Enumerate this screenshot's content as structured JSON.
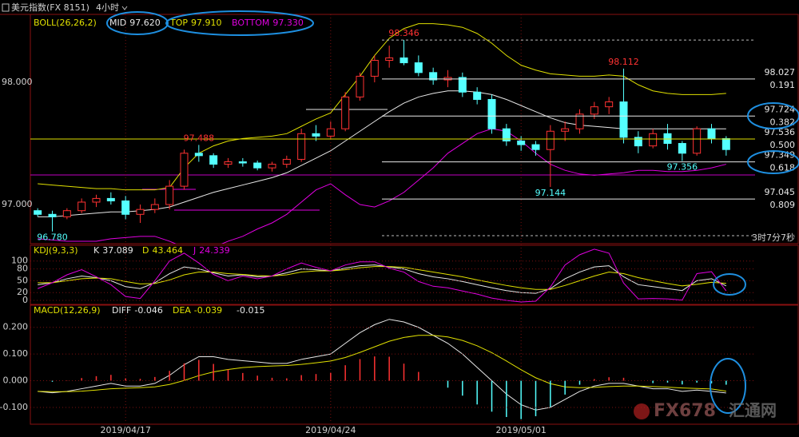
{
  "header": {
    "symbol": "美元指数(FX 8151)",
    "period": "4小时"
  },
  "countdown": "3时7分7秒",
  "watermark": {
    "logo": "FX678",
    "name": "汇通网"
  },
  "chart_data": [
    {
      "type": "candlestick",
      "indicator": "BOLL(26,26,2)",
      "categories": [
        null,
        null,
        null,
        null,
        null,
        null,
        "2019/04/17",
        null,
        null,
        null,
        null,
        null,
        null,
        null,
        null,
        null,
        null,
        null,
        null,
        null,
        "2019/04/24",
        null,
        null,
        null,
        null,
        null,
        null,
        null,
        null,
        null,
        null,
        null,
        null,
        "2019/05/01",
        null,
        null,
        null,
        null,
        null,
        null,
        null,
        null,
        null,
        null,
        null,
        null,
        null,
        null
      ],
      "open": [
        96.95,
        96.92,
        96.9,
        96.95,
        97.02,
        97.05,
        97.03,
        96.92,
        96.96,
        97.0,
        97.15,
        97.42,
        97.4,
        97.33,
        97.35,
        97.34,
        97.3,
        97.33,
        97.37,
        97.58,
        97.56,
        97.62,
        97.88,
        98.05,
        98.18,
        98.2,
        98.16,
        98.08,
        98.02,
        98.04,
        97.92,
        97.86,
        97.62,
        97.52,
        97.49,
        97.45,
        97.6,
        97.62,
        97.74,
        97.8,
        97.84,
        97.55,
        97.48,
        97.58,
        97.5,
        97.42,
        97.62,
        97.54
      ],
      "high": [
        96.97,
        96.95,
        96.97,
        97.05,
        97.08,
        97.1,
        97.07,
        97.0,
        97.05,
        97.2,
        97.45,
        97.488,
        97.42,
        97.38,
        97.38,
        97.36,
        97.35,
        97.4,
        97.62,
        97.65,
        97.68,
        97.92,
        98.08,
        98.22,
        98.3,
        98.346,
        98.22,
        98.12,
        98.1,
        98.08,
        97.96,
        97.9,
        97.66,
        97.56,
        97.52,
        97.65,
        97.68,
        97.78,
        97.84,
        97.88,
        98.112,
        97.6,
        97.62,
        97.66,
        97.52,
        97.64,
        97.66,
        97.56
      ],
      "low": [
        96.9,
        96.78,
        96.88,
        96.93,
        96.98,
        97.0,
        96.88,
        96.85,
        96.93,
        96.96,
        97.12,
        97.35,
        97.3,
        97.3,
        97.31,
        97.28,
        97.27,
        97.3,
        97.35,
        97.52,
        97.54,
        97.6,
        97.85,
        98.0,
        98.12,
        98.14,
        98.05,
        97.98,
        97.96,
        97.88,
        97.82,
        97.58,
        97.48,
        97.44,
        97.4,
        97.144,
        97.52,
        97.58,
        97.7,
        97.74,
        97.5,
        97.42,
        97.46,
        97.45,
        97.356,
        97.4,
        97.5,
        97.4
      ],
      "close": [
        96.92,
        96.9,
        96.95,
        97.02,
        97.05,
        97.03,
        96.92,
        96.96,
        97.0,
        97.15,
        97.42,
        97.4,
        97.33,
        97.35,
        97.34,
        97.3,
        97.33,
        97.37,
        97.58,
        97.56,
        97.62,
        97.88,
        98.05,
        98.18,
        98.2,
        98.16,
        98.08,
        98.02,
        98.04,
        97.92,
        97.86,
        97.62,
        97.52,
        97.49,
        97.45,
        97.6,
        97.62,
        97.74,
        97.8,
        97.84,
        97.55,
        97.48,
        97.58,
        97.5,
        97.42,
        97.62,
        97.54,
        97.45
      ],
      "up_color": "#ff3232",
      "down_color": "#54ffff",
      "series": [
        {
          "name": "MID",
          "color": "#e8e8e8",
          "values": [
            96.9,
            96.9,
            96.91,
            96.92,
            96.93,
            96.94,
            96.94,
            96.95,
            96.96,
            96.98,
            97.02,
            97.06,
            97.1,
            97.13,
            97.16,
            97.19,
            97.22,
            97.26,
            97.32,
            97.38,
            97.44,
            97.52,
            97.6,
            97.68,
            97.76,
            97.83,
            97.88,
            97.91,
            97.93,
            97.93,
            97.92,
            97.9,
            97.86,
            97.81,
            97.76,
            97.71,
            97.67,
            97.65,
            97.64,
            97.63,
            97.62,
            97.62,
            97.62,
            97.62,
            97.62,
            97.62,
            97.62,
            97.62
          ],
          "value_labels": [
            null,
            null,
            null,
            null,
            null,
            null,
            null,
            null,
            null,
            null,
            null,
            null,
            null,
            null,
            null,
            null,
            null,
            null,
            null,
            null,
            null,
            null,
            null,
            null,
            null,
            null,
            null,
            null,
            null,
            null,
            null,
            null,
            null,
            null,
            null,
            null,
            null,
            null,
            null,
            null,
            null,
            null,
            null,
            null,
            null,
            null,
            null,
            "97.620"
          ]
        },
        {
          "name": "TOP",
          "color": "#e0e000",
          "values": [
            97.17,
            97.16,
            97.15,
            97.14,
            97.13,
            97.13,
            97.12,
            97.12,
            97.12,
            97.14,
            97.3,
            97.42,
            97.48,
            97.52,
            97.54,
            97.55,
            97.56,
            97.58,
            97.64,
            97.7,
            97.75,
            97.9,
            98.05,
            98.22,
            98.36,
            98.44,
            98.48,
            98.48,
            98.47,
            98.45,
            98.4,
            98.32,
            98.22,
            98.14,
            98.1,
            98.07,
            98.06,
            98.05,
            98.05,
            98.06,
            98.05,
            97.98,
            97.93,
            97.91,
            97.9,
            97.9,
            97.9,
            97.91
          ],
          "value_labels": [
            null,
            null,
            null,
            null,
            null,
            null,
            null,
            null,
            null,
            null,
            null,
            null,
            null,
            null,
            null,
            null,
            null,
            null,
            null,
            null,
            null,
            null,
            null,
            null,
            null,
            null,
            null,
            null,
            null,
            null,
            null,
            null,
            null,
            null,
            null,
            null,
            null,
            null,
            null,
            null,
            null,
            null,
            null,
            null,
            null,
            null,
            null,
            "97.910"
          ]
        },
        {
          "name": "BOTTOM",
          "color": "#e000e0",
          "values": [
            96.72,
            96.71,
            96.7,
            96.7,
            96.7,
            96.72,
            96.73,
            96.74,
            96.74,
            96.7,
            96.65,
            96.62,
            96.65,
            96.7,
            96.74,
            96.8,
            96.85,
            96.92,
            97.02,
            97.12,
            97.17,
            97.08,
            97.0,
            96.98,
            97.03,
            97.1,
            97.2,
            97.3,
            97.42,
            97.5,
            97.58,
            97.62,
            97.6,
            97.52,
            97.42,
            97.33,
            97.28,
            97.25,
            97.24,
            97.25,
            97.26,
            97.28,
            97.28,
            97.27,
            97.27,
            97.28,
            97.3,
            97.33
          ],
          "value_labels": [
            null,
            null,
            null,
            null,
            null,
            null,
            null,
            null,
            null,
            null,
            null,
            null,
            null,
            null,
            null,
            null,
            null,
            null,
            null,
            null,
            null,
            null,
            null,
            null,
            null,
            null,
            null,
            null,
            null,
            null,
            null,
            null,
            null,
            null,
            null,
            null,
            null,
            null,
            null,
            null,
            null,
            null,
            null,
            null,
            null,
            null,
            null,
            "97.330"
          ]
        }
      ],
      "extremes": [
        98.346,
        98.112,
        97.488,
        97.144,
        97.356,
        {
          "value": 96.78,
          "label": "96.780"
        }
      ],
      "fib_levels": [
        {
          "value": 98.027,
          "ratio": "0.191",
          "color": "#e8e8e8"
        },
        {
          "value": 97.724,
          "ratio": "0.382",
          "color": "#e8e8e8"
        },
        {
          "value": 97.536,
          "ratio": "0.500",
          "color": "#e0e000",
          "extend_left": true
        },
        {
          "value": 97.349,
          "ratio": "0.618",
          "color": "#e8e8e8"
        },
        {
          "value": 97.045,
          "ratio": "0.809",
          "color": "#e8e8e8"
        }
      ],
      "ylim": [
        96.68,
        98.556
      ],
      "yticks": [
        {
          "value": 98,
          "label": "98.000"
        },
        {
          "value": 97,
          "label": "97.000"
        }
      ],
      "grid": false
    },
    {
      "type": "line",
      "indicator": "KDJ(9,3,3)",
      "series": [
        {
          "name": "K",
          "color": "#e8e8e8",
          "values": [
            40,
            45,
            55,
            62,
            58,
            50,
            35,
            30,
            45,
            68,
            85,
            80,
            70,
            62,
            65,
            60,
            62,
            70,
            80,
            78,
            75,
            82,
            88,
            90,
            85,
            80,
            68,
            60,
            55,
            48,
            40,
            32,
            25,
            20,
            18,
            30,
            55,
            72,
            85,
            88,
            60,
            40,
            35,
            30,
            25,
            50,
            55,
            37.089
          ]
        },
        {
          "name": "D",
          "color": "#e0e000",
          "values": [
            45,
            45,
            50,
            55,
            57,
            55,
            48,
            42,
            43,
            52,
            65,
            72,
            72,
            68,
            66,
            63,
            62,
            65,
            72,
            75,
            75,
            78,
            83,
            86,
            86,
            84,
            78,
            72,
            66,
            60,
            52,
            45,
            38,
            32,
            28,
            28,
            38,
            50,
            62,
            72,
            68,
            58,
            50,
            43,
            37,
            41,
            46,
            43.464
          ]
        },
        {
          "name": "J",
          "color": "#e000e0",
          "values": [
            30,
            45,
            65,
            78,
            60,
            40,
            10,
            5,
            50,
            100,
            120,
            95,
            66,
            50,
            62,
            55,
            62,
            80,
            95,
            84,
            75,
            90,
            98,
            98,
            82,
            72,
            48,
            36,
            32,
            24,
            16,
            6,
            0,
            -4,
            -2,
            34,
            90,
            116,
            130,
            120,
            44,
            4,
            5,
            4,
            1,
            68,
            73,
            24.339
          ]
        }
      ],
      "ylim": [
        -8,
        138
      ],
      "yticks": [
        0,
        20,
        50,
        80,
        100
      ],
      "grid": true
    },
    {
      "type": "macd",
      "indicator": "MACD(12,26,9)",
      "series": [
        {
          "name": "DIFF",
          "color": "#e8e8e8",
          "values": [
            -0.04,
            -0.045,
            -0.04,
            -0.03,
            -0.02,
            -0.01,
            -0.02,
            -0.02,
            -0.01,
            0.02,
            0.06,
            0.09,
            0.09,
            0.08,
            0.075,
            0.07,
            0.065,
            0.065,
            0.08,
            0.09,
            0.1,
            0.14,
            0.18,
            0.21,
            0.23,
            0.22,
            0.2,
            0.17,
            0.14,
            0.1,
            0.05,
            0.0,
            -0.05,
            -0.09,
            -0.11,
            -0.1,
            -0.07,
            -0.04,
            -0.02,
            -0.01,
            -0.01,
            -0.02,
            -0.03,
            -0.03,
            -0.04,
            -0.035,
            -0.04,
            -0.046
          ]
        },
        {
          "name": "DEA",
          "color": "#e0e000",
          "values": [
            -0.04,
            -0.041,
            -0.041,
            -0.039,
            -0.035,
            -0.03,
            -0.028,
            -0.026,
            -0.023,
            -0.014,
            0.001,
            0.019,
            0.033,
            0.042,
            0.049,
            0.053,
            0.055,
            0.057,
            0.061,
            0.067,
            0.074,
            0.087,
            0.106,
            0.127,
            0.148,
            0.162,
            0.17,
            0.17,
            0.164,
            0.151,
            0.131,
            0.105,
            0.074,
            0.041,
            0.011,
            -0.011,
            -0.023,
            -0.026,
            -0.025,
            -0.022,
            -0.02,
            -0.02,
            -0.022,
            -0.024,
            -0.027,
            -0.029,
            -0.031,
            -0.039
          ]
        },
        {
          "kind": "bar",
          "up_color": "#ff3232",
          "down_color": "#54ffff",
          "values": [
            0,
            -0.004,
            0.001,
            0.01,
            0.017,
            0.022,
            0.009,
            0.007,
            0.014,
            0.037,
            0.065,
            0.078,
            0.063,
            0.042,
            0.029,
            0.019,
            0.011,
            0.009,
            0.021,
            0.025,
            0.029,
            0.058,
            0.081,
            0.091,
            0.09,
            0.064,
            0.033,
            0,
            -0.026,
            -0.056,
            -0.089,
            -0.116,
            -0.136,
            -0.144,
            -0.133,
            -0.098,
            -0.052,
            -0.015,
            0.006,
            0.013,
            0.011,
            0,
            -0.009,
            -0.007,
            -0.014,
            -0.007,
            -0.01,
            -0.015
          ]
        }
      ],
      "ylim": [
        -0.16,
        0.28
      ],
      "yticks": [
        {
          "value": -0.1,
          "label": "-0.100"
        },
        {
          "value": 0,
          "label": "0.000"
        },
        {
          "value": 0.1,
          "label": "0.100"
        },
        {
          "value": 0.2,
          "label": "0.200"
        }
      ],
      "grid": true
    }
  ]
}
